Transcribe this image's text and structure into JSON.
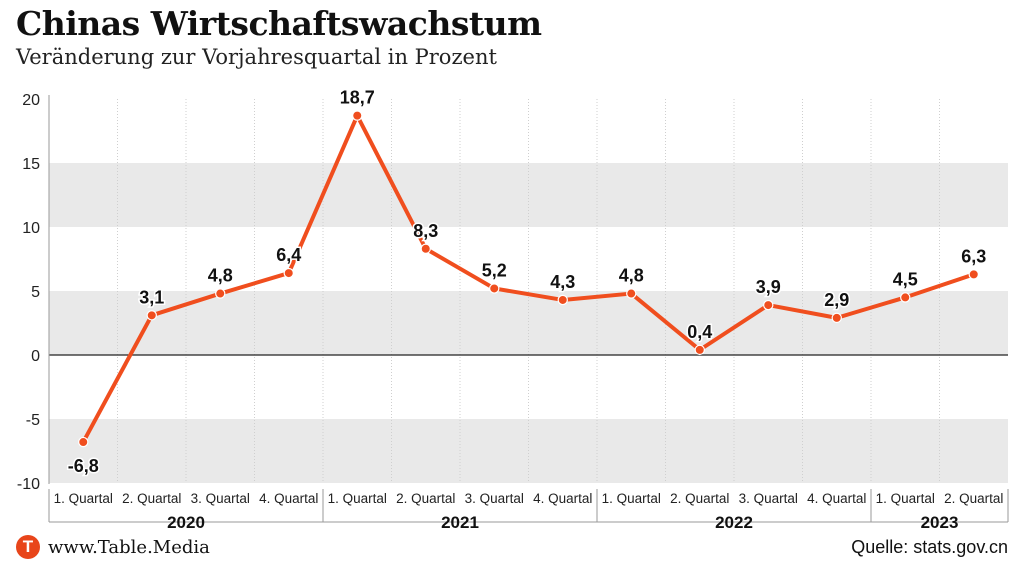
{
  "header": {
    "title": "Chinas Wirtschaftswachstum",
    "subtitle": "Veränderung zur Vorjahresquartal in Prozent"
  },
  "footer": {
    "logo_letter": "T",
    "site": "www.Table.Media",
    "source": "Quelle: stats.gov.cn"
  },
  "colors": {
    "line": "#f04e1e",
    "band": "#e9e9e9",
    "zero_line": "#222222"
  },
  "chart_data": {
    "type": "line",
    "title": "Chinas Wirtschaftswachstum",
    "subtitle": "Veränderung zur Vorjahresquartal in Prozent",
    "categories": [
      "1. Quartal",
      "2. Quartal",
      "3. Quartal",
      "4. Quartal",
      "1. Quartal",
      "2. Quartal",
      "3. Quartal",
      "4. Quartal",
      "1. Quartal",
      "2. Quartal",
      "3. Quartal",
      "4. Quartal",
      "1. Quartal",
      "2. Quartal"
    ],
    "years": [
      {
        "label": "2020",
        "quarters": 4
      },
      {
        "label": "2021",
        "quarters": 4
      },
      {
        "label": "2022",
        "quarters": 4
      },
      {
        "label": "2023",
        "quarters": 2
      }
    ],
    "values": [
      -6.8,
      3.1,
      4.8,
      6.4,
      18.7,
      8.3,
      5.2,
      4.3,
      4.8,
      0.4,
      3.9,
      2.9,
      4.5,
      6.3
    ],
    "value_labels": [
      "-6,8",
      "3,1",
      "4,8",
      "6,4",
      "18,7",
      "8,3",
      "5,2",
      "4,3",
      "4,8",
      "0,4",
      "3,9",
      "2,9",
      "4,5",
      "6,3"
    ],
    "ylim": [
      -10,
      20
    ],
    "yticks": [
      20,
      15,
      10,
      5,
      0,
      -5,
      -10
    ],
    "ytick_labels": [
      "20",
      "15",
      "10",
      "5",
      "0",
      "-5",
      "-10"
    ],
    "grid": true,
    "legend": "none"
  }
}
